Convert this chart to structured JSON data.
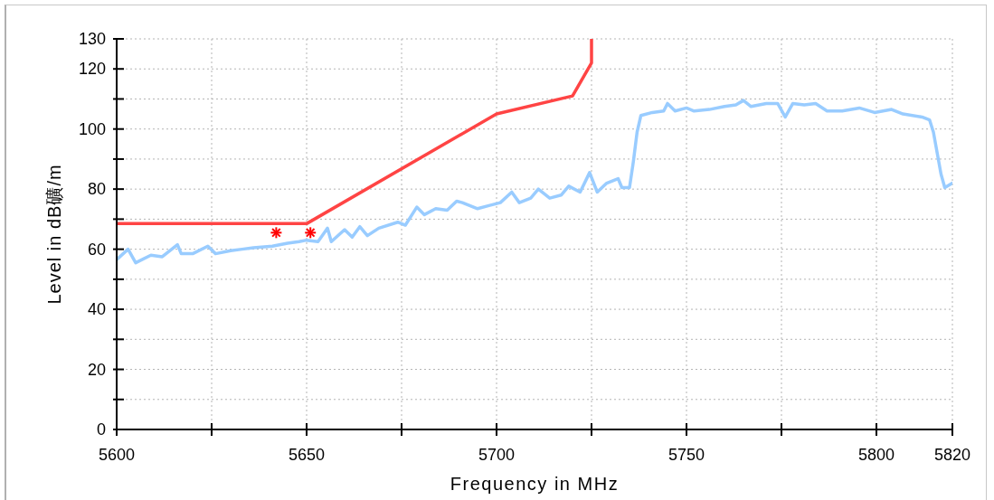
{
  "chart_data": {
    "type": "line",
    "xlabel": "Frequency in MHz",
    "ylabel": "Level in dB礦/m",
    "xlim": [
      5600,
      5820
    ],
    "xticks": [
      5600,
      {
        "value": 5625,
        "label": null
      },
      5650,
      {
        "value": 5675,
        "label": null
      },
      5700,
      {
        "value": 5725,
        "label": null
      },
      5750,
      {
        "value": 5775,
        "label": null
      },
      5800,
      5820
    ],
    "ylim": [
      0,
      130
    ],
    "yticks": [
      0,
      {
        "value": 10,
        "label": null
      },
      20,
      {
        "value": 30,
        "label": null
      },
      40,
      {
        "value": 50,
        "label": null
      },
      60,
      {
        "value": 70,
        "label": null
      },
      80,
      {
        "value": 90,
        "label": null
      },
      100,
      {
        "value": 110,
        "label": null
      },
      120,
      130
    ],
    "grid": true,
    "series": [
      {
        "color": "#99ccff",
        "x": [
          5600,
          5603,
          5605,
          5609,
          5612,
          5616,
          5617,
          5620,
          5624,
          5626,
          5630,
          5633,
          5636,
          5641,
          5645,
          5648,
          5650,
          5653,
          5655.5,
          5656.5,
          5660,
          5662,
          5664,
          5666,
          5669,
          5674,
          5676,
          5679,
          5681,
          5684,
          5687,
          5689.5,
          5691,
          5695,
          5698,
          5701,
          5704,
          5706,
          5709,
          5711,
          5714,
          5717,
          5719,
          5722,
          5724.5,
          5726.5,
          5729,
          5732,
          5733,
          5735,
          5736,
          5737,
          5738,
          5741,
          5744,
          5745,
          5747,
          5750,
          5752,
          5756,
          5760,
          5763,
          5765,
          5767,
          5771,
          5774,
          5776,
          5778,
          5781,
          5784,
          5787,
          5791,
          5795.5,
          5799.5,
          5804,
          5807,
          5812,
          5814,
          5815,
          5816,
          5817,
          5818,
          5820
        ],
        "values": [
          56.5,
          60,
          55.5,
          58,
          57.5,
          61.5,
          58.5,
          58.5,
          61,
          58.5,
          59.5,
          60,
          60.5,
          61,
          62,
          62.5,
          63,
          62.5,
          67,
          62.5,
          66.5,
          64,
          67.5,
          64.5,
          67,
          69,
          68,
          74,
          71.5,
          73.5,
          73,
          76,
          75.5,
          73.5,
          74.5,
          75.5,
          79,
          75.5,
          77,
          80,
          77,
          78,
          81,
          79,
          85.5,
          79,
          82,
          83.5,
          80.5,
          80.5,
          89,
          99,
          104.5,
          105.5,
          106,
          108.5,
          106,
          107,
          106,
          106.5,
          107.5,
          108,
          109.5,
          107.5,
          108.5,
          108.5,
          104,
          108.5,
          108,
          108.5,
          106,
          106,
          107,
          105.5,
          106.5,
          105,
          104,
          103,
          99,
          92,
          85,
          80.5,
          82
        ]
      },
      {
        "color": "#ff4444",
        "x": [
          5600,
          5650,
          5700,
          5720,
          5725,
          5725
        ],
        "values": [
          68.5,
          68.5,
          105,
          111,
          122,
          130
        ]
      },
      {
        "type": "scatter",
        "color": "#ff0000",
        "marker": "cross",
        "x": [
          5642,
          5651
        ],
        "values": [
          65.5,
          65.5
        ]
      }
    ]
  }
}
